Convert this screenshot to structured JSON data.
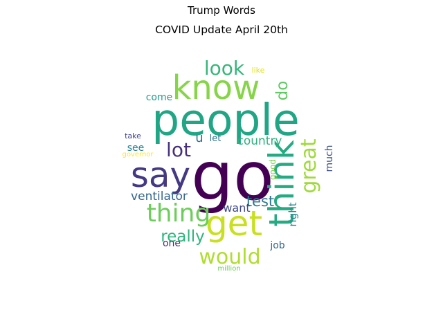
{
  "title": "Trump Words",
  "subtitle": "COVID Update April 20th",
  "words": [
    {
      "text": "go",
      "color": "#440154"
    },
    {
      "text": "people",
      "color": "#21a685"
    },
    {
      "text": "know",
      "color": "#86d549"
    },
    {
      "text": "say",
      "color": "#443983"
    },
    {
      "text": "get",
      "color": "#c8e020"
    },
    {
      "text": "think",
      "color": "#25ab82"
    },
    {
      "text": "thing",
      "color": "#6ccd5a"
    },
    {
      "text": "great",
      "color": "#9fda3a"
    },
    {
      "text": "look",
      "color": "#35b779"
    },
    {
      "text": "lot",
      "color": "#46307e"
    },
    {
      "text": "would",
      "color": "#b0dd2f"
    },
    {
      "text": "really",
      "color": "#2fb47c"
    },
    {
      "text": "do",
      "color": "#5ec962"
    },
    {
      "text": "test",
      "color": "#2a788e"
    },
    {
      "text": "ventilator",
      "color": "#32658e"
    },
    {
      "text": "country",
      "color": "#2db27d"
    },
    {
      "text": "right",
      "color": "#24878e"
    },
    {
      "text": "much",
      "color": "#3b528b"
    },
    {
      "text": "want",
      "color": "#3e4989"
    },
    {
      "text": "u",
      "color": "#2d708e"
    },
    {
      "text": "see",
      "color": "#26828e"
    },
    {
      "text": "come",
      "color": "#1f9e89"
    },
    {
      "text": "good",
      "color": "#7ad151"
    },
    {
      "text": "job",
      "color": "#30678d"
    },
    {
      "text": "one",
      "color": "#472c7a"
    },
    {
      "text": "let",
      "color": "#2c728e"
    },
    {
      "text": "take",
      "color": "#414487"
    },
    {
      "text": "governor",
      "color": "#fde725"
    },
    {
      "text": "million",
      "color": "#6ece58"
    },
    {
      "text": "like",
      "color": "#dfe318"
    }
  ]
}
